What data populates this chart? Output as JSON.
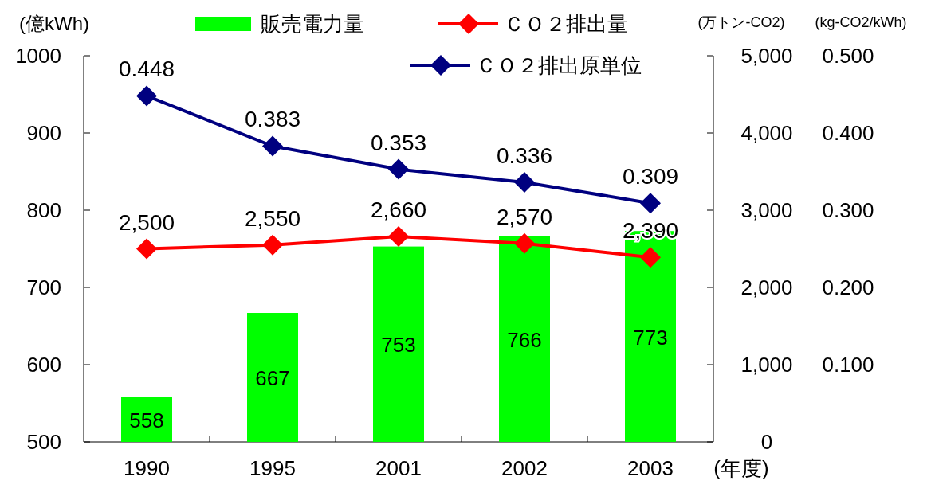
{
  "chart_data": {
    "type": "bar",
    "categories": [
      "1990",
      "1995",
      "2001",
      "2002",
      "2003"
    ],
    "series": [
      {
        "name": "販売電力量",
        "axis": "y",
        "color": "#00ff00",
        "values": [
          558,
          667,
          753,
          766,
          773
        ],
        "value_labels": [
          "558",
          "667",
          "753",
          "766",
          "773"
        ]
      },
      {
        "name": "ＣＯ２排出量",
        "type": "line",
        "axis": "y2",
        "color": "#ff0000",
        "values": [
          2500,
          2550,
          2660,
          2570,
          2390
        ],
        "value_labels": [
          "2,500",
          "2,550",
          "2,660",
          "2,570",
          "2,390"
        ]
      },
      {
        "name": "ＣＯ２排出原単位",
        "type": "line",
        "axis": "y3",
        "color": "#000080",
        "values": [
          0.448,
          0.383,
          0.353,
          0.336,
          0.309
        ],
        "value_labels": [
          "0.448",
          "0.383",
          "0.353",
          "0.336",
          "0.309"
        ]
      }
    ],
    "ylabel": "(億kWh)",
    "y2label": "(万トン-CO2)",
    "y3label": "(kg-CO2/kWh)",
    "xlabel": "(年度)",
    "ylim": [
      500,
      1000
    ],
    "yticks": [
      500,
      600,
      700,
      800,
      900,
      1000
    ],
    "y2lim": [
      0,
      5000
    ],
    "y2ticks": [
      0,
      {
        "value": 1000,
        "label": "1,000"
      },
      {
        "value": 2000,
        "label": "2,000"
      },
      {
        "value": 3000,
        "label": "3,000"
      },
      {
        "value": 4000,
        "label": "4,000"
      },
      {
        "value": 5000,
        "label": "5,000"
      }
    ],
    "y3lim": [
      0,
      0.5
    ],
    "y3ticks": [
      {
        "value": 0.1,
        "label": "0.100"
      },
      {
        "value": 0.2,
        "label": "0.200"
      },
      {
        "value": 0.3,
        "label": "0.300"
      },
      {
        "value": 0.4,
        "label": "0.400"
      },
      {
        "value": 0.5,
        "label": "0.500"
      }
    ],
    "legend": "top",
    "marker": "diamond"
  }
}
